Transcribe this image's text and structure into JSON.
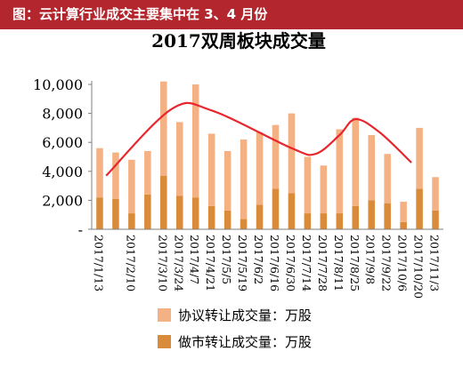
{
  "banner": {
    "text": "图：云计算行业成交主要集中在 3、4 月份"
  },
  "chart_data": {
    "type": "bar",
    "title": "2017双周板块成交量",
    "ylim": [
      0,
      10000
    ],
    "yticks": [
      0,
      2000,
      4000,
      6000,
      8000,
      10000
    ],
    "ytick_labels": [
      "-",
      "2,000",
      "4,000",
      "6,000",
      "8,000",
      "10,000"
    ],
    "categories": [
      "2017/1/13",
      "2017/1/27",
      "2017/2/10",
      "2017/2/24",
      "2017/3/10",
      "2017/3/24",
      "2017/4/7",
      "2017/4/21",
      "2017/5/5",
      "2017/5/19",
      "2017/6/2",
      "2017/6/16",
      "2017/6/30",
      "2017/7/14",
      "2017/7/28",
      "2017/8/11",
      "2017/8/25",
      "2017/9/8",
      "2017/9/22",
      "2017/10/6",
      "2017/10/20",
      "2017/11/3"
    ],
    "xtick_labels": [
      "2017/1/13",
      "2017/2/10",
      "2017/3/10",
      "2017/3/24",
      "2017/4/7",
      "2017/4/21",
      "2017/5/5",
      "2017/5/19",
      "2017/6/2",
      "2017/6/16",
      "2017/6/30",
      "2017/7/14",
      "2017/7/28",
      "2017/8/11",
      "2017/8/25",
      "2017/9/8",
      "2017/9/22",
      "2017/10/6",
      "2017/10/20",
      "2017/11/3"
    ],
    "series": [
      {
        "name": "协议转让成交量：万股",
        "color": "#f4b183",
        "values": [
          3400,
          3200,
          3700,
          3000,
          6500,
          5100,
          7800,
          5000,
          4100,
          5500,
          5000,
          4400,
          5500,
          3900,
          3300,
          5800,
          6100,
          4500,
          3400,
          1400,
          4200,
          2300
        ]
      },
      {
        "name": "做市转让成交量：万股",
        "color": "#d98b3a",
        "values": [
          2200,
          2100,
          1100,
          2400,
          3700,
          2300,
          2200,
          1600,
          1300,
          700,
          1700,
          2800,
          2500,
          1100,
          1100,
          1100,
          1600,
          2000,
          1800,
          500,
          2800,
          1300
        ]
      }
    ],
    "annotation_curve": {
      "color": "#e8262e",
      "points": [
        [
          0.4,
          3700
        ],
        [
          4.5,
          8300
        ],
        [
          7.0,
          8200
        ],
        [
          12.0,
          5600
        ],
        [
          13.5,
          5200
        ],
        [
          15.0,
          6500
        ],
        [
          16.0,
          7600
        ],
        [
          17.5,
          6700
        ],
        [
          19.5,
          4600
        ]
      ]
    },
    "legend_position": "bottom",
    "grid": false
  }
}
